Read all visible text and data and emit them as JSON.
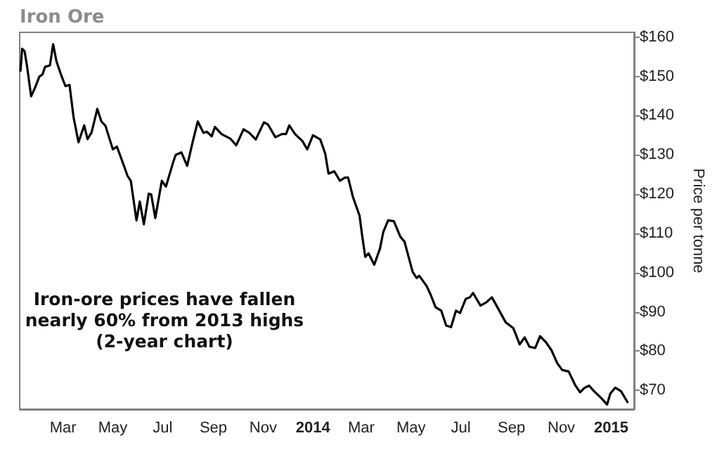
{
  "chart_data": {
    "type": "line",
    "title": "Iron Ore",
    "ylabel": "Price per tonne",
    "annotations": [
      "Iron-ore prices have fallen\nnearly 60% from 2013 highs\n(2-year chart)"
    ],
    "xlim": [
      "2013-01-07",
      "2015-01-29"
    ],
    "xticks": [
      {
        "value": "2013-03-01",
        "label": "Mar"
      },
      {
        "value": "2013-05-01",
        "label": "May"
      },
      {
        "value": "2013-07-01",
        "label": "Jul"
      },
      {
        "value": "2013-09-01",
        "label": "Sep"
      },
      {
        "value": "2013-11-01",
        "label": "Nov"
      },
      {
        "value": "2014-01-01",
        "label": "2014"
      },
      {
        "value": "2014-03-01",
        "label": "Mar"
      },
      {
        "value": "2014-05-01",
        "label": "May"
      },
      {
        "value": "2014-07-01",
        "label": "Jul"
      },
      {
        "value": "2014-09-01",
        "label": "Sep"
      },
      {
        "value": "2014-11-01",
        "label": "Nov"
      },
      {
        "value": "2015-01-01",
        "label": "2015"
      }
    ],
    "ylim": [
      65.2,
      161.2
    ],
    "yticks": [
      {
        "value": 70,
        "label": "$70"
      },
      {
        "value": 80,
        "label": "$80"
      },
      {
        "value": 90,
        "label": "$90"
      },
      {
        "value": 100,
        "label": "$100"
      },
      {
        "value": 110,
        "label": "$110"
      },
      {
        "value": 120,
        "label": "$120"
      },
      {
        "value": 130,
        "label": "$130"
      },
      {
        "value": 140,
        "label": "$140"
      },
      {
        "value": 150,
        "label": "$150"
      },
      {
        "value": 160,
        "label": "$160"
      }
    ],
    "marker": "none",
    "line_style": "solid",
    "series": [
      {
        "color": "#000000",
        "x": [
          "2013-01-08",
          "2013-01-10",
          "2013-01-13",
          "2013-01-16",
          "2013-01-21",
          "2013-01-26",
          "2013-01-31",
          "2013-02-04",
          "2013-02-07",
          "2013-02-13",
          "2013-02-17",
          "2013-02-21",
          "2013-02-27",
          "2013-03-04",
          "2013-03-09",
          "2013-03-14",
          "2013-03-20",
          "2013-03-27",
          "2013-03-31",
          "2013-04-05",
          "2013-04-12",
          "2013-04-17",
          "2013-04-22",
          "2013-05-01",
          "2013-05-06",
          "2013-05-15",
          "2013-05-19",
          "2013-05-23",
          "2013-05-30",
          "2013-06-03",
          "2013-06-08",
          "2013-06-14",
          "2013-06-17",
          "2013-06-22",
          "2013-06-30",
          "2013-07-05",
          "2013-07-14",
          "2013-07-17",
          "2013-07-24",
          "2013-07-31",
          "2013-08-07",
          "2013-08-13",
          "2013-08-20",
          "2013-08-24",
          "2013-08-30",
          "2013-09-03",
          "2013-09-11",
          "2013-09-22",
          "2013-09-29",
          "2013-10-08",
          "2013-10-15",
          "2013-10-23",
          "2013-11-02",
          "2013-11-07",
          "2013-11-16",
          "2013-11-24",
          "2013-11-29",
          "2013-12-03",
          "2013-12-10",
          "2013-12-19",
          "2013-12-25",
          "2014-01-01",
          "2014-01-10",
          "2014-01-16",
          "2014-01-20",
          "2014-01-27",
          "2014-02-03",
          "2014-02-09",
          "2014-02-13",
          "2014-02-19",
          "2014-02-27",
          "2014-03-02",
          "2014-03-06",
          "2014-03-10",
          "2014-03-17",
          "2014-03-24",
          "2014-03-28",
          "2014-04-03",
          "2014-04-10",
          "2014-04-18",
          "2014-04-23",
          "2014-05-03",
          "2014-05-08",
          "2014-05-11",
          "2014-05-20",
          "2014-05-25",
          "2014-05-31",
          "2014-06-07",
          "2014-06-13",
          "2014-06-19",
          "2014-06-25",
          "2014-06-30",
          "2014-07-07",
          "2014-07-12",
          "2014-07-16",
          "2014-07-25",
          "2014-08-01",
          "2014-08-08",
          "2014-08-16",
          "2014-08-25",
          "2014-09-03",
          "2014-09-06",
          "2014-09-11",
          "2014-09-17",
          "2014-09-23",
          "2014-09-30",
          "2014-10-06",
          "2014-10-13",
          "2014-10-20",
          "2014-10-27",
          "2014-11-02",
          "2014-11-10",
          "2014-11-18",
          "2014-11-24",
          "2014-11-29",
          "2014-12-05",
          "2014-12-11",
          "2014-12-20",
          "2014-12-27",
          "2014-12-31",
          "2015-01-06",
          "2015-01-13",
          "2015-01-21"
        ],
        "values": [
          151.4,
          157.0,
          156.4,
          152.6,
          144.9,
          147.2,
          149.9,
          150.5,
          152.4,
          152.8,
          158.2,
          153.8,
          150.2,
          147.5,
          147.8,
          139.5,
          133.2,
          137.5,
          134.0,
          135.7,
          141.7,
          138.5,
          137.4,
          131.4,
          132.1,
          127.0,
          124.6,
          123.4,
          113.3,
          118.1,
          112.3,
          120.1,
          119.9,
          113.9,
          123.4,
          121.9,
          128.2,
          130.0,
          130.6,
          127.2,
          133.5,
          138.5,
          135.6,
          135.9,
          134.7,
          137.1,
          135.3,
          134.1,
          132.4,
          136.5,
          135.6,
          133.9,
          138.3,
          137.7,
          134.5,
          135.3,
          135.3,
          137.5,
          135.3,
          133.5,
          131.4,
          135.0,
          133.9,
          130.3,
          125.2,
          125.8,
          123.4,
          124.2,
          124.2,
          119.2,
          114.5,
          109.7,
          104.0,
          104.9,
          102.0,
          106.1,
          110.3,
          113.3,
          113.1,
          109.1,
          107.9,
          100.2,
          98.6,
          99.2,
          96.6,
          94.4,
          91.2,
          90.3,
          86.5,
          86.1,
          90.3,
          89.7,
          93.3,
          93.7,
          94.8,
          91.6,
          92.4,
          93.7,
          90.7,
          87.3,
          85.9,
          84.4,
          81.7,
          83.5,
          81.1,
          80.8,
          83.8,
          82.3,
          80.2,
          76.9,
          75.2,
          74.8,
          71.3,
          69.5,
          70.6,
          71.2,
          69.8,
          68.0,
          66.4,
          69.2,
          70.7,
          69.8,
          67.0
        ]
      }
    ]
  }
}
